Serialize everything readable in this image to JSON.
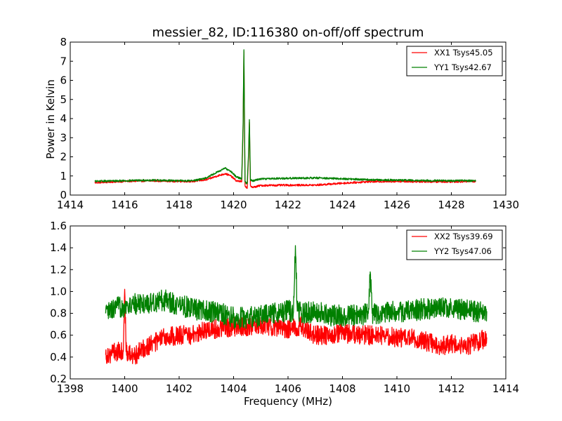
{
  "chart_data": [
    {
      "type": "line",
      "title": "messier_82, ID:116380 on-off/off spectrum",
      "xlabel": "",
      "ylabel": "Power in Kelvin",
      "xlim": [
        1414,
        1430
      ],
      "ylim": [
        0,
        8
      ],
      "xticks": [
        "1414",
        "1416",
        "1418",
        "1420",
        "1422",
        "1424",
        "1426",
        "1428",
        "1430"
      ],
      "yticks": [
        "0",
        "1",
        "2",
        "3",
        "4",
        "5",
        "6",
        "7",
        "8"
      ],
      "legend_position": "top-right",
      "series": [
        {
          "name": "XX1 Tsys45.05",
          "color": "#ff0000",
          "noise": 0.05,
          "x": [
            1414.9,
            1416.0,
            1417.0,
            1418.0,
            1418.5,
            1419.0,
            1419.4,
            1419.7,
            1419.9,
            1420.1,
            1420.3,
            1420.35,
            1420.38,
            1420.42,
            1420.5,
            1420.55,
            1420.58,
            1420.62,
            1420.7,
            1421.0,
            1422.0,
            1423.0,
            1424.0,
            1425.0,
            1426.0,
            1427.0,
            1428.0,
            1428.9
          ],
          "y": [
            0.65,
            0.72,
            0.75,
            0.72,
            0.72,
            0.8,
            1.0,
            1.12,
            1.0,
            0.75,
            0.7,
            3.5,
            7.5,
            0.5,
            0.35,
            2.0,
            3.8,
            0.5,
            0.4,
            0.5,
            0.52,
            0.52,
            0.62,
            0.7,
            0.72,
            0.7,
            0.7,
            0.72
          ]
        },
        {
          "name": "YY1 Tsys42.67",
          "color": "#008000",
          "noise": 0.05,
          "x": [
            1414.9,
            1416.0,
            1417.0,
            1418.0,
            1418.5,
            1419.0,
            1419.4,
            1419.7,
            1419.9,
            1420.1,
            1420.3,
            1420.35,
            1420.38,
            1420.42,
            1420.5,
            1420.55,
            1420.58,
            1420.62,
            1420.7,
            1421.0,
            1422.0,
            1423.0,
            1424.0,
            1425.0,
            1426.0,
            1427.0,
            1428.0,
            1428.9
          ],
          "y": [
            0.72,
            0.75,
            0.78,
            0.75,
            0.75,
            0.9,
            1.2,
            1.4,
            1.25,
            0.95,
            0.85,
            3.8,
            7.6,
            0.7,
            0.6,
            2.2,
            3.95,
            0.8,
            0.75,
            0.85,
            0.88,
            0.9,
            0.85,
            0.8,
            0.78,
            0.76,
            0.75,
            0.75
          ]
        }
      ]
    },
    {
      "type": "line",
      "title": "",
      "xlabel": "Frequency (MHz)",
      "ylabel": "",
      "xlim": [
        1398,
        1414
      ],
      "ylim": [
        0.2,
        1.6
      ],
      "xticks": [
        "1398",
        "1400",
        "1402",
        "1404",
        "1406",
        "1408",
        "1410",
        "1412",
        "1414"
      ],
      "yticks": [
        "0.2",
        "0.4",
        "0.6",
        "0.8",
        "1.0",
        "1.2",
        "1.4",
        "1.6"
      ],
      "legend_position": "top-right",
      "series": [
        {
          "name": "XX2 Tsys39.69",
          "color": "#ff0000",
          "noise": 0.09,
          "x": [
            1399.3,
            1399.7,
            1399.95,
            1400.0,
            1400.05,
            1400.3,
            1400.8,
            1401.5,
            1402.0,
            1402.5,
            1403.0,
            1403.5,
            1404.0,
            1404.5,
            1405.0,
            1405.5,
            1406.0,
            1406.5,
            1407.0,
            1407.5,
            1408.0,
            1408.5,
            1409.0,
            1409.5,
            1410.0,
            1410.5,
            1411.0,
            1411.5,
            1412.0,
            1412.5,
            1413.0,
            1413.3
          ],
          "y": [
            0.42,
            0.45,
            0.45,
            1.02,
            0.45,
            0.4,
            0.5,
            0.58,
            0.6,
            0.6,
            0.65,
            0.66,
            0.68,
            0.68,
            0.7,
            0.68,
            0.66,
            0.68,
            0.6,
            0.6,
            0.62,
            0.6,
            0.6,
            0.6,
            0.58,
            0.57,
            0.55,
            0.5,
            0.52,
            0.5,
            0.54,
            0.58
          ]
        },
        {
          "name": "YY2 Tsys47.06",
          "color": "#008000",
          "noise": 0.1,
          "x": [
            1399.3,
            1399.7,
            1400.3,
            1401.0,
            1401.5,
            1402.0,
            1402.5,
            1403.0,
            1403.5,
            1404.0,
            1404.5,
            1405.0,
            1405.5,
            1406.0,
            1406.2,
            1406.27,
            1406.34,
            1406.5,
            1407.0,
            1407.5,
            1408.0,
            1408.5,
            1408.95,
            1409.02,
            1409.09,
            1409.5,
            1410.0,
            1410.5,
            1411.0,
            1411.5,
            1412.0,
            1412.5,
            1413.0,
            1413.3
          ],
          "y": [
            0.8,
            0.85,
            0.88,
            0.9,
            0.92,
            0.88,
            0.84,
            0.82,
            0.8,
            0.76,
            0.76,
            0.78,
            0.8,
            0.82,
            0.82,
            1.42,
            0.82,
            0.8,
            0.82,
            0.78,
            0.78,
            0.78,
            0.8,
            1.18,
            0.8,
            0.8,
            0.82,
            0.82,
            0.84,
            0.85,
            0.84,
            0.83,
            0.82,
            0.82
          ]
        }
      ]
    }
  ]
}
